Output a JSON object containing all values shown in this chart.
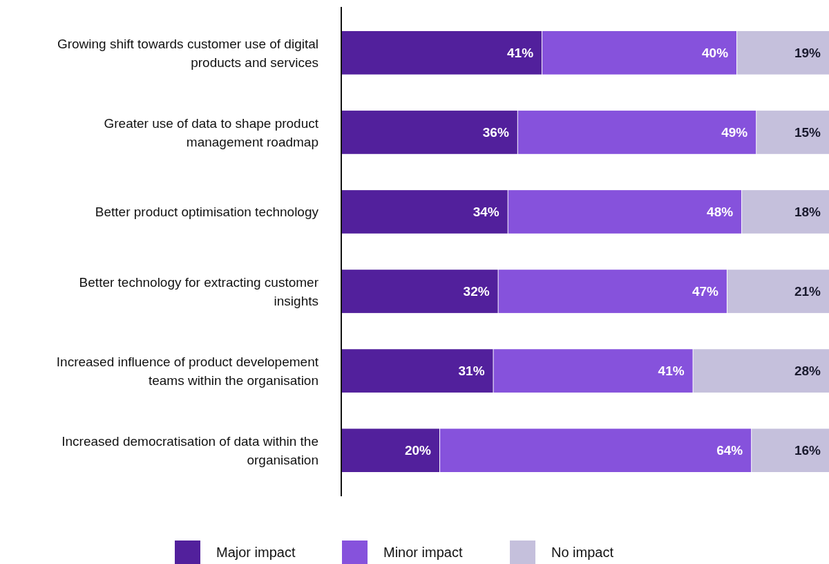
{
  "chart_data": {
    "type": "bar",
    "orientation": "horizontal",
    "stacked": true,
    "legend": "bottom",
    "categories": [
      "Growing shift towards customer use of digital products and services",
      "Greater use of data to shape product management roadmap",
      "Better product optimisation technology",
      "Better technology for extracting customer insights",
      "Increased influence of product developement teams within the organisation",
      "Increased democratisation of data within the organisation"
    ],
    "series": [
      {
        "name": "Major impact",
        "color": "#52209c",
        "values": [
          41,
          36,
          34,
          32,
          31,
          20
        ],
        "value_labels": [
          "41%",
          "36%",
          "34%",
          "32%",
          "31%",
          "20%"
        ]
      },
      {
        "name": "Minor impact",
        "color": "#8652dc",
        "values": [
          40,
          49,
          48,
          47,
          41,
          64
        ],
        "value_labels": [
          "40%",
          "49%",
          "48%",
          "47%",
          "41%",
          "64%"
        ]
      },
      {
        "name": "No impact",
        "color": "#c5c0dc",
        "values": [
          19,
          15,
          18,
          21,
          28,
          16
        ],
        "value_labels": [
          "19%",
          "15%",
          "18%",
          "21%",
          "28%",
          "16%"
        ]
      }
    ]
  }
}
